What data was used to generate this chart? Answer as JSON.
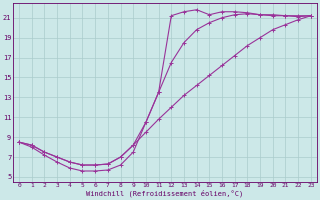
{
  "xlabel": "Windchill (Refroidissement éolien,°C)",
  "bg_color": "#cce8e8",
  "line_color": "#993399",
  "grid_color": "#aacccc",
  "text_color": "#660066",
  "xlim": [
    -0.5,
    23.5
  ],
  "ylim": [
    4.5,
    22.5
  ],
  "xticks": [
    0,
    1,
    2,
    3,
    4,
    5,
    6,
    7,
    8,
    9,
    10,
    11,
    12,
    13,
    14,
    15,
    16,
    17,
    18,
    19,
    20,
    21,
    22,
    23
  ],
  "yticks": [
    5,
    7,
    9,
    11,
    13,
    15,
    17,
    19,
    21
  ],
  "line1_x": [
    0,
    1,
    2,
    3,
    4,
    5,
    6,
    7,
    8,
    9,
    10,
    11,
    12,
    13,
    14,
    15,
    16,
    17,
    18,
    19,
    20,
    21,
    22,
    23
  ],
  "line1_y": [
    8.5,
    8.0,
    7.2,
    6.5,
    5.9,
    5.6,
    5.6,
    5.7,
    6.2,
    7.5,
    10.5,
    13.5,
    21.2,
    21.6,
    21.8,
    21.3,
    21.6,
    21.6,
    21.5,
    21.3,
    21.3,
    21.2,
    21.2,
    21.2
  ],
  "line2_x": [
    0,
    1,
    2,
    3,
    4,
    5,
    6,
    7,
    8,
    9,
    10,
    11,
    12,
    13,
    14,
    15,
    16,
    17,
    18,
    19,
    20,
    21,
    22,
    23
  ],
  "line2_y": [
    8.5,
    8.2,
    7.5,
    7.0,
    6.5,
    6.2,
    6.2,
    6.3,
    7.0,
    8.2,
    10.5,
    13.5,
    16.5,
    18.5,
    19.8,
    20.5,
    21.0,
    21.3,
    21.4,
    21.3,
    21.2,
    21.2,
    21.1,
    21.2
  ],
  "line3_x": [
    0,
    1,
    2,
    3,
    4,
    5,
    6,
    7,
    8,
    9,
    10,
    11,
    12,
    13,
    14,
    15,
    16,
    17,
    18,
    19,
    20,
    21,
    22,
    23
  ],
  "line3_y": [
    8.5,
    8.2,
    7.5,
    7.0,
    6.5,
    6.2,
    6.2,
    6.3,
    7.0,
    8.2,
    9.5,
    10.8,
    12.0,
    13.2,
    14.2,
    15.2,
    16.2,
    17.2,
    18.2,
    19.0,
    19.8,
    20.3,
    20.8,
    21.2
  ]
}
